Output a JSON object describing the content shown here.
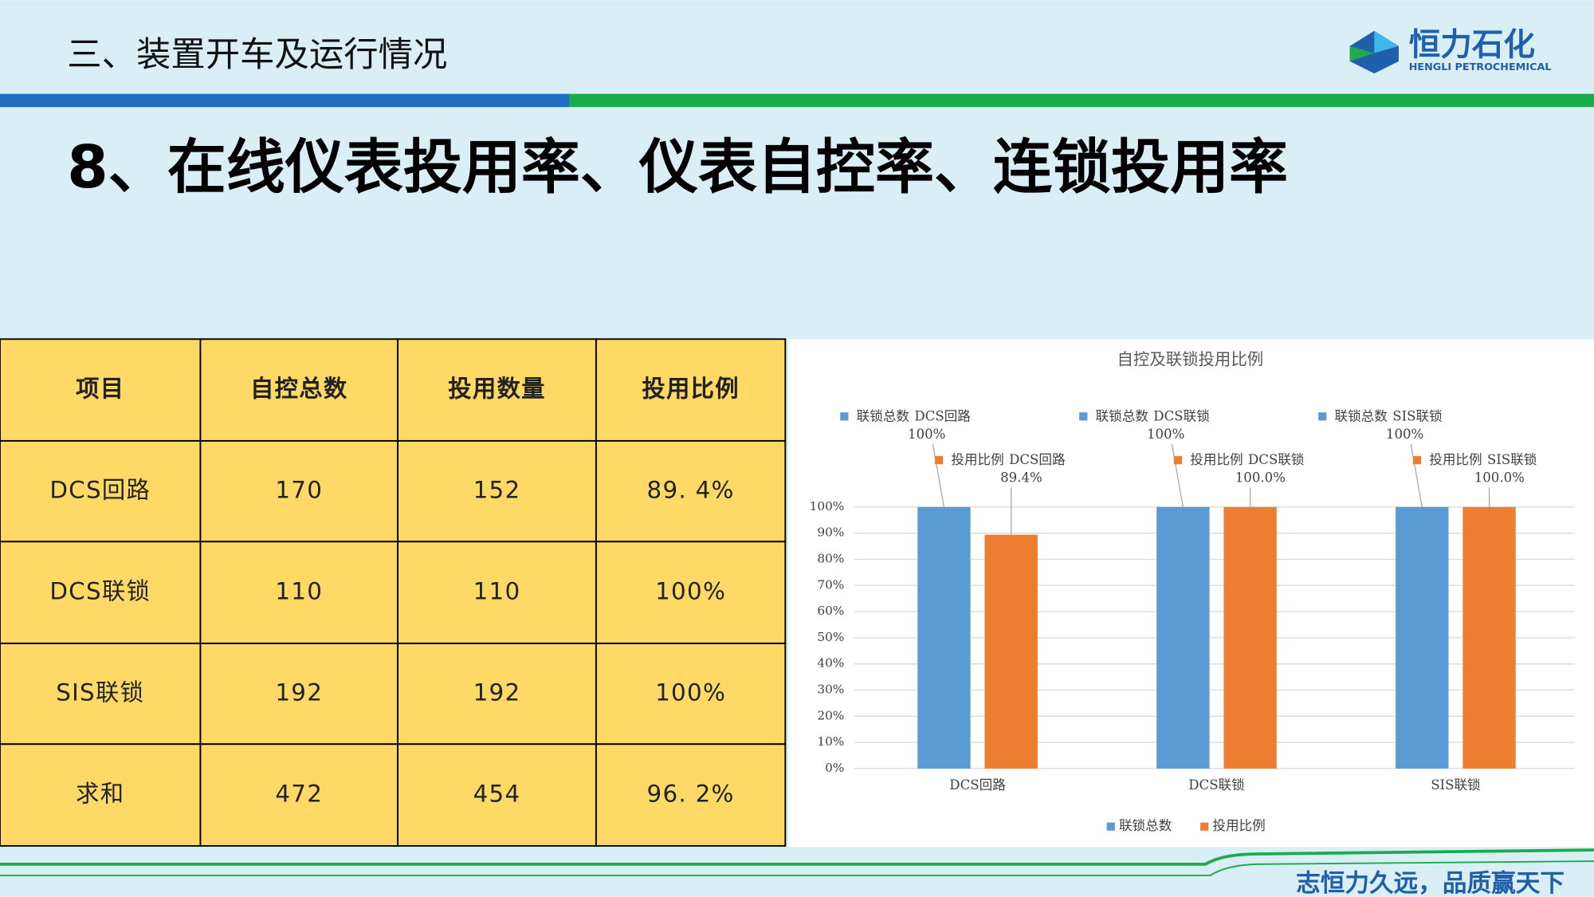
{
  "header": {
    "section": "三、装置开车及运行情况",
    "logo_cn": "恒力石化",
    "logo_en": "HENGLI PETROCHEMICAL"
  },
  "title": "8、在线仪表投用率、仪表自控率、连锁投用率",
  "table": {
    "columns": [
      "项目",
      "自控总数",
      "投用数量",
      "投用比例"
    ],
    "rows": [
      [
        "DCS回路",
        170,
        152,
        "89. 4%"
      ],
      [
        "DCS联锁",
        110,
        110,
        "100%"
      ],
      [
        "SIS联锁",
        192,
        192,
        "100%"
      ],
      [
        "求和",
        472,
        454,
        "96. 2%"
      ]
    ]
  },
  "chart_data": {
    "type": "bar",
    "title": "自控及联锁投用比例",
    "categories": [
      "DCS回路",
      "DCS联锁",
      "SIS联锁"
    ],
    "series": [
      {
        "name": "联锁总数",
        "color": "#5b9bd5",
        "values": [
          100,
          100,
          100
        ],
        "value_labels": [
          "100%",
          "100%",
          "100%"
        ]
      },
      {
        "name": "投用比例",
        "color": "#ed7d31",
        "values": [
          89.4,
          100,
          100
        ],
        "value_labels": [
          "89.4%",
          "100.0%",
          "100.0%"
        ]
      }
    ],
    "ylim": [
      0,
      100
    ],
    "yticks": [
      {
        "value": 0,
        "label": "0%"
      },
      {
        "value": 10,
        "label": "10%"
      },
      {
        "value": 20,
        "label": "20%"
      },
      {
        "value": 30,
        "label": "30%"
      },
      {
        "value": 40,
        "label": "40%"
      },
      {
        "value": 50,
        "label": "50%"
      },
      {
        "value": 60,
        "label": "60%"
      },
      {
        "value": 70,
        "label": "70%"
      },
      {
        "value": 80,
        "label": "80%"
      },
      {
        "value": 90,
        "label": "90%"
      },
      {
        "value": 100,
        "label": "100%"
      }
    ],
    "grid": true,
    "legend": "bottom"
  },
  "footer": {
    "slogan": "志恒力久远，品质赢天下"
  }
}
